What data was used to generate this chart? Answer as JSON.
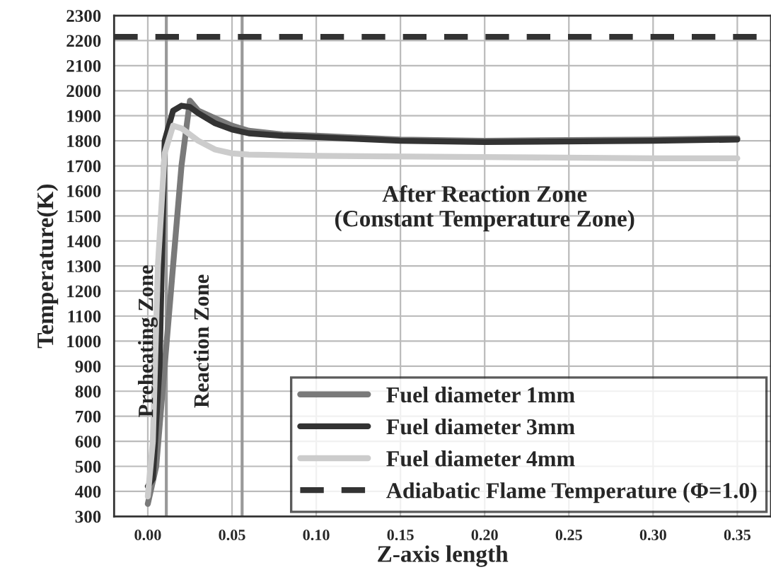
{
  "chart_data": {
    "type": "line",
    "xlabel": "Z-axis length",
    "ylabel": "Temperature(K)",
    "xlim": [
      -0.02,
      0.37
    ],
    "xticks": [
      {
        "value": 0.0,
        "label": "0.00"
      },
      {
        "value": 0.05,
        "label": "0.05"
      },
      {
        "value": 0.1,
        "label": "0.10"
      },
      {
        "value": 0.15,
        "label": "0.15"
      },
      {
        "value": 0.2,
        "label": "0.20"
      },
      {
        "value": 0.25,
        "label": "0.25"
      },
      {
        "value": 0.3,
        "label": "0.30"
      },
      {
        "value": 0.35,
        "label": "0.35"
      }
    ],
    "ylim": [
      300,
      2300
    ],
    "yticks": [
      300,
      400,
      500,
      600,
      700,
      800,
      900,
      1000,
      1100,
      1200,
      1300,
      1400,
      1500,
      1600,
      1700,
      1800,
      1900,
      2000,
      2100,
      2200,
      2300
    ],
    "grid": true,
    "legend": "bottom right",
    "series": [
      {
        "name": "Fuel diameter 1mm",
        "color": "#7a7a7a",
        "x": [
          0,
          0.005,
          0.01,
          0.015,
          0.02,
          0.025,
          0.03,
          0.04,
          0.05,
          0.06,
          0.08,
          0.1,
          0.15,
          0.2,
          0.3,
          0.35
        ],
        "values": [
          350,
          500,
          900,
          1300,
          1700,
          1960,
          1920,
          1890,
          1860,
          1840,
          1825,
          1820,
          1805,
          1800,
          1805,
          1810
        ]
      },
      {
        "name": "Fuel diameter 3mm",
        "color": "#333333",
        "x": [
          0,
          0.003,
          0.007,
          0.01,
          0.015,
          0.02,
          0.025,
          0.03,
          0.04,
          0.05,
          0.06,
          0.08,
          0.1,
          0.15,
          0.2,
          0.3,
          0.35
        ],
        "values": [
          420,
          450,
          900,
          1800,
          1920,
          1940,
          1935,
          1910,
          1870,
          1845,
          1830,
          1820,
          1815,
          1800,
          1795,
          1800,
          1805
        ]
      },
      {
        "name": "Fuel diameter 4mm",
        "color": "#cccccc",
        "x": [
          0,
          0.003,
          0.006,
          0.01,
          0.015,
          0.02,
          0.03,
          0.04,
          0.05,
          0.06,
          0.1,
          0.2,
          0.3,
          0.35
        ],
        "values": [
          380,
          600,
          1300,
          1750,
          1860,
          1850,
          1800,
          1765,
          1750,
          1745,
          1740,
          1735,
          1730,
          1730
        ]
      },
      {
        "name": "Adiabatic Flame Temperature (Φ=1.0)",
        "color": "#333333",
        "line_style": "dashed",
        "x": [
          -0.02,
          0.37
        ],
        "values": [
          2215,
          2215
        ]
      }
    ],
    "ref_lines": [
      {
        "axis": "x",
        "value": 0.011,
        "color": "#999999"
      },
      {
        "axis": "x",
        "value": 0.056,
        "color": "#999999"
      }
    ],
    "annotations": [
      "Preheating Zone",
      "Reaction Zone",
      "After Reaction Zone\n(Constant Temperature Zone)"
    ]
  }
}
